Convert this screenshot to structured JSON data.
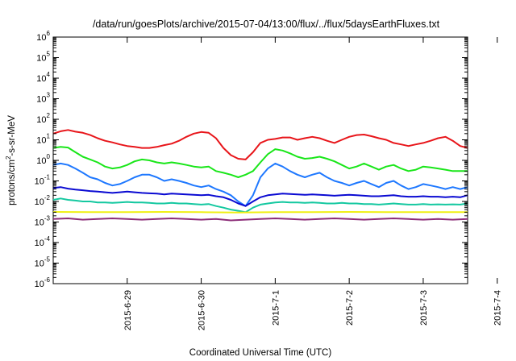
{
  "chart_data": {
    "type": "line",
    "title": "/data/run/goesPlots/archive/2015-07-04/13:00/flux/../flux/5daysEarthFluxes.txt",
    "xlabel": "Coordinated Universal Time (UTC)",
    "ylabel_parts": [
      "protons/cm",
      "2",
      "-s-sr-MeV"
    ],
    "y_scale": "log",
    "ylim": [
      1e-06,
      1000000.0
    ],
    "xlim_days": [
      0,
      5.6
    ],
    "x_tick_labels": [
      "2015-6-29",
      "2015-6-30",
      "2015-7-1",
      "2015-7-2",
      "2015-7-3",
      "2015-7-4"
    ],
    "y_tick_exponents": [
      "-6",
      "-5",
      "-4",
      "-3",
      "-2",
      "-1",
      "0",
      "1",
      "2",
      "3",
      "4",
      "5",
      "6"
    ],
    "y_tick_base": "10",
    "grid": false,
    "legend": "none",
    "series": [
      {
        "color": "#e8151a",
        "x": [
          0,
          0.1,
          0.2,
          0.3,
          0.4,
          0.5,
          0.6,
          0.7,
          0.8,
          0.9,
          1.0,
          1.1,
          1.2,
          1.3,
          1.4,
          1.5,
          1.6,
          1.7,
          1.8,
          1.9,
          2.0,
          2.1,
          2.2,
          2.3,
          2.4,
          2.5,
          2.6,
          2.7,
          2.8,
          2.9,
          3.0,
          3.1,
          3.2,
          3.3,
          3.4,
          3.5,
          3.6,
          3.7,
          3.8,
          3.9,
          4.0,
          4.1,
          4.2,
          4.3,
          4.4,
          4.5,
          4.6,
          4.7,
          4.8,
          4.9,
          5.0,
          5.1,
          5.2,
          5.3,
          5.4,
          5.5,
          5.6
        ],
        "y": [
          20,
          26,
          30,
          25,
          22,
          17,
          12,
          9,
          7.5,
          6,
          5,
          4.5,
          4,
          4,
          4.5,
          5.5,
          6.5,
          9,
          14,
          20,
          24,
          22,
          12,
          4,
          1.8,
          1.2,
          1.1,
          2.5,
          7,
          10,
          11,
          13,
          13,
          10,
          12,
          14,
          12,
          9,
          7,
          10,
          14,
          17,
          18,
          15,
          12,
          10,
          7,
          6,
          5,
          6,
          7,
          9,
          12,
          14,
          9,
          5,
          4
        ]
      },
      {
        "color": "#19e619",
        "x": [
          0,
          0.1,
          0.2,
          0.3,
          0.4,
          0.5,
          0.6,
          0.7,
          0.8,
          0.9,
          1.0,
          1.1,
          1.2,
          1.3,
          1.4,
          1.5,
          1.6,
          1.7,
          1.8,
          1.9,
          2.0,
          2.1,
          2.2,
          2.3,
          2.4,
          2.5,
          2.6,
          2.7,
          2.8,
          2.9,
          3.0,
          3.1,
          3.2,
          3.3,
          3.4,
          3.5,
          3.6,
          3.7,
          3.8,
          3.9,
          4.0,
          4.1,
          4.2,
          4.3,
          4.4,
          4.5,
          4.6,
          4.7,
          4.8,
          4.9,
          5.0,
          5.1,
          5.2,
          5.3,
          5.4,
          5.5,
          5.6
        ],
        "y": [
          4,
          4.5,
          4.2,
          2.5,
          1.5,
          1.1,
          0.8,
          0.5,
          0.4,
          0.45,
          0.6,
          0.9,
          1.1,
          1.0,
          0.8,
          0.7,
          0.8,
          0.7,
          0.6,
          0.5,
          0.45,
          0.5,
          0.3,
          0.25,
          0.2,
          0.15,
          0.2,
          0.3,
          0.8,
          2,
          3.5,
          3,
          2.2,
          1.5,
          1.2,
          1.3,
          1.5,
          1.2,
          0.9,
          0.6,
          0.4,
          0.5,
          0.7,
          0.5,
          0.35,
          0.5,
          0.6,
          0.4,
          0.3,
          0.35,
          0.5,
          0.45,
          0.4,
          0.35,
          0.3,
          0.3,
          0.3
        ]
      },
      {
        "color": "#1e78ff",
        "x": [
          0,
          0.1,
          0.2,
          0.3,
          0.4,
          0.5,
          0.6,
          0.7,
          0.8,
          0.9,
          1.0,
          1.1,
          1.2,
          1.3,
          1.4,
          1.5,
          1.6,
          1.7,
          1.8,
          1.9,
          2.0,
          2.1,
          2.2,
          2.3,
          2.4,
          2.5,
          2.6,
          2.7,
          2.8,
          2.9,
          3.0,
          3.1,
          3.2,
          3.3,
          3.4,
          3.5,
          3.6,
          3.7,
          3.8,
          3.9,
          4.0,
          4.1,
          4.2,
          4.3,
          4.4,
          4.5,
          4.6,
          4.7,
          4.8,
          4.9,
          5.0,
          5.1,
          5.2,
          5.3,
          5.4,
          5.5,
          5.6
        ],
        "y": [
          0.6,
          0.7,
          0.6,
          0.4,
          0.25,
          0.15,
          0.12,
          0.08,
          0.06,
          0.07,
          0.1,
          0.15,
          0.2,
          0.2,
          0.15,
          0.1,
          0.12,
          0.1,
          0.08,
          0.06,
          0.05,
          0.06,
          0.04,
          0.03,
          0.02,
          0.01,
          0.006,
          0.02,
          0.15,
          0.4,
          0.7,
          0.5,
          0.3,
          0.2,
          0.15,
          0.2,
          0.25,
          0.15,
          0.1,
          0.08,
          0.06,
          0.08,
          0.1,
          0.07,
          0.05,
          0.08,
          0.1,
          0.06,
          0.04,
          0.05,
          0.07,
          0.06,
          0.05,
          0.04,
          0.05,
          0.04,
          0.05
        ]
      },
      {
        "color": "#0a0ad2",
        "x": [
          0,
          0.1,
          0.2,
          0.3,
          0.4,
          0.5,
          0.6,
          0.7,
          0.8,
          0.9,
          1.0,
          1.1,
          1.2,
          1.3,
          1.4,
          1.5,
          1.6,
          1.7,
          1.8,
          1.9,
          2.0,
          2.1,
          2.2,
          2.3,
          2.4,
          2.5,
          2.6,
          2.7,
          2.8,
          2.9,
          3.0,
          3.1,
          3.2,
          3.3,
          3.4,
          3.5,
          3.6,
          3.7,
          3.8,
          3.9,
          4.0,
          4.1,
          4.2,
          4.3,
          4.4,
          4.5,
          4.6,
          4.7,
          4.8,
          4.9,
          5.0,
          5.1,
          5.2,
          5.3,
          5.4,
          5.5,
          5.6
        ],
        "y": [
          0.045,
          0.05,
          0.042,
          0.038,
          0.035,
          0.032,
          0.03,
          0.028,
          0.026,
          0.028,
          0.03,
          0.028,
          0.026,
          0.025,
          0.024,
          0.022,
          0.024,
          0.023,
          0.022,
          0.021,
          0.02,
          0.021,
          0.018,
          0.016,
          0.012,
          0.008,
          0.006,
          0.01,
          0.016,
          0.02,
          0.022,
          0.024,
          0.023,
          0.022,
          0.021,
          0.022,
          0.021,
          0.02,
          0.019,
          0.02,
          0.021,
          0.02,
          0.019,
          0.018,
          0.018,
          0.019,
          0.02,
          0.018,
          0.017,
          0.017,
          0.018,
          0.017,
          0.017,
          0.016,
          0.017,
          0.016,
          0.02
        ]
      },
      {
        "color": "#14c8a0",
        "x": [
          0,
          0.1,
          0.2,
          0.3,
          0.4,
          0.5,
          0.6,
          0.7,
          0.8,
          0.9,
          1.0,
          1.1,
          1.2,
          1.3,
          1.4,
          1.5,
          1.6,
          1.7,
          1.8,
          1.9,
          2.0,
          2.1,
          2.2,
          2.3,
          2.4,
          2.5,
          2.6,
          2.7,
          2.8,
          2.9,
          3.0,
          3.1,
          3.2,
          3.3,
          3.4,
          3.5,
          3.6,
          3.7,
          3.8,
          3.9,
          4.0,
          4.1,
          4.2,
          4.3,
          4.4,
          4.5,
          4.6,
          4.7,
          4.8,
          4.9,
          5.0,
          5.1,
          5.2,
          5.3,
          5.4,
          5.5,
          5.6
        ],
        "y": [
          0.012,
          0.014,
          0.012,
          0.011,
          0.01,
          0.01,
          0.009,
          0.009,
          0.0085,
          0.009,
          0.0095,
          0.009,
          0.009,
          0.0085,
          0.008,
          0.008,
          0.0085,
          0.008,
          0.008,
          0.0075,
          0.007,
          0.0075,
          0.006,
          0.005,
          0.004,
          0.0035,
          0.003,
          0.005,
          0.007,
          0.008,
          0.009,
          0.0095,
          0.009,
          0.009,
          0.0085,
          0.009,
          0.0085,
          0.008,
          0.008,
          0.0085,
          0.008,
          0.008,
          0.0075,
          0.0075,
          0.007,
          0.0075,
          0.008,
          0.0075,
          0.007,
          0.007,
          0.0075,
          0.007,
          0.0072,
          0.007,
          0.0072,
          0.007,
          0.008
        ]
      },
      {
        "color": "#f0f014",
        "x": [
          0,
          0.5,
          1.0,
          1.5,
          2.0,
          2.5,
          3.0,
          3.5,
          4.0,
          4.5,
          5.0,
          5.6
        ],
        "y": [
          0.0031,
          0.003,
          0.003,
          0.0031,
          0.003,
          0.0029,
          0.003,
          0.003,
          0.0031,
          0.003,
          0.003,
          0.003
        ]
      },
      {
        "color": "#8c2d78",
        "x": [
          0,
          0.2,
          0.4,
          0.6,
          0.8,
          1.0,
          1.2,
          1.4,
          1.6,
          1.8,
          2.0,
          2.2,
          2.4,
          2.6,
          2.8,
          3.0,
          3.2,
          3.4,
          3.6,
          3.8,
          4.0,
          4.2,
          4.4,
          4.6,
          4.8,
          5.0,
          5.2,
          5.4,
          5.6
        ],
        "y": [
          0.0014,
          0.0015,
          0.0013,
          0.0014,
          0.0015,
          0.0014,
          0.0013,
          0.0014,
          0.0015,
          0.0014,
          0.0013,
          0.0014,
          0.0012,
          0.0013,
          0.0014,
          0.0015,
          0.0014,
          0.0013,
          0.0014,
          0.0015,
          0.0014,
          0.0013,
          0.0014,
          0.0015,
          0.0014,
          0.0013,
          0.0014,
          0.0013,
          0.0014
        ]
      }
    ]
  }
}
